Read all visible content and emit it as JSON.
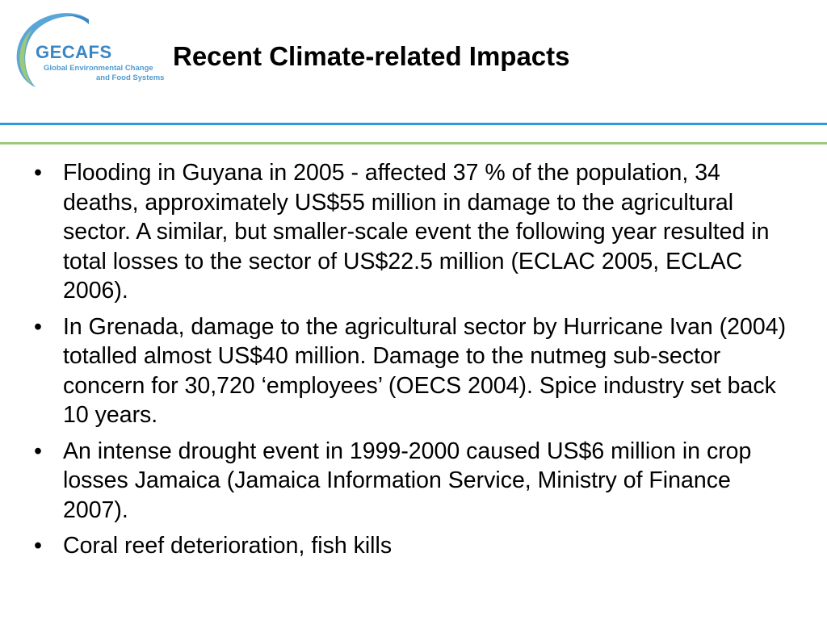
{
  "logo": {
    "name": "GECAFS",
    "subtitle_line1": "Global Environmental Change",
    "subtitle_line2": "and Food Systems",
    "colors": {
      "primary": "#3a86c4",
      "ring": "#5aa6d8",
      "accent": "#9cc97a"
    }
  },
  "slide": {
    "title": "Recent Climate-related Impacts",
    "bullet_symbol": "•",
    "bullets": [
      "Flooding in Guyana in 2005 - affected 37 % of the population, 34 deaths, approximately US$55 million in damage to the agricultural sector. A similar, but smaller-scale event the following year resulted in total losses to the sector of US$22.5 million (ECLAC 2005, ECLAC 2006).",
      "In Grenada, damage to the agricultural sector by Hurricane Ivan (2004) totalled almost US$40 million. Damage to the nutmeg sub-sector concern for 30,720 ‘employees’ (OECS 2004). Spice industry set back 10 years.",
      "An intense drought event in 1999-2000 caused US$6 million in crop losses Jamaica (Jamaica Information Service, Ministry of Finance 2007).",
      "Coral reef deterioration, fish kills"
    ]
  },
  "colors": {
    "rule_top": "#2e9ad6",
    "rule_bottom": "#9cc97a",
    "text": "#000000"
  }
}
